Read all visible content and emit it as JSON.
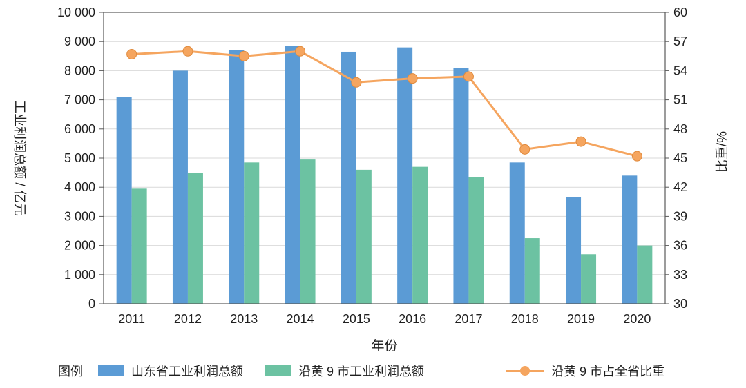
{
  "chart_data": {
    "type": "bar",
    "title": "",
    "categories": [
      "2011",
      "2012",
      "2013",
      "2014",
      "2015",
      "2016",
      "2017",
      "2018",
      "2019",
      "2020"
    ],
    "xlabel": "年份",
    "ylabel_left": "工业利润总额 / 亿元",
    "ylabel_right": "比重/%",
    "ylim_left": [
      0,
      10000
    ],
    "ytick_step_left": 1000,
    "left_tick_labels": [
      "0",
      "1 000",
      "2 000",
      "3 000",
      "4 000",
      "5 000",
      "6 000",
      "7 000",
      "8 000",
      "9 000",
      "10 000"
    ],
    "ylim_right": [
      30,
      60
    ],
    "ytick_step_right": 3,
    "right_tick_labels": [
      "30",
      "33",
      "36",
      "39",
      "42",
      "45",
      "48",
      "51",
      "54",
      "57",
      "60"
    ],
    "grid": true,
    "legend_title": "图例",
    "series": [
      {
        "name": "山东省工业利润总额",
        "type": "bar",
        "axis": "left",
        "color": "#5b9bd5",
        "values": [
          7100,
          8000,
          8700,
          8850,
          8650,
          8800,
          8100,
          4850,
          3650,
          4400
        ]
      },
      {
        "name": "沿黄 9 市工业利润总额",
        "type": "bar",
        "axis": "left",
        "color": "#6cc2a2",
        "values": [
          3950,
          4500,
          4850,
          4950,
          4600,
          4700,
          4350,
          2250,
          1700,
          2000
        ]
      },
      {
        "name": "沿黄 9 市占全省比重",
        "type": "line",
        "axis": "right",
        "color": "#f5a55f",
        "values": [
          55.7,
          56.0,
          55.5,
          56.0,
          52.8,
          53.2,
          53.4,
          45.9,
          46.7,
          45.2
        ]
      }
    ],
    "colors": {
      "grid": "#d9d9d9",
      "axis": "#595959",
      "text": "#1f1f1f",
      "marker_edge": "#e08a3c"
    }
  }
}
